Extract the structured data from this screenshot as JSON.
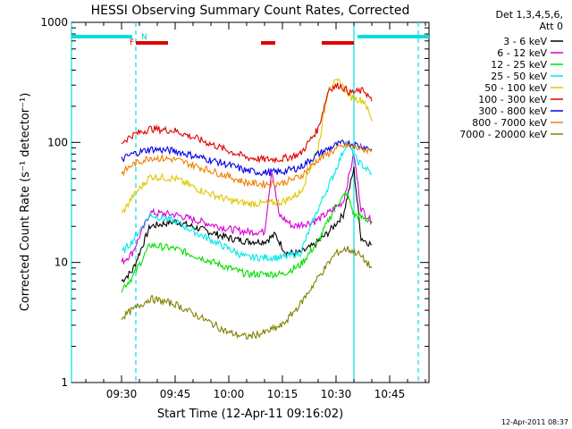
{
  "chart_data": {
    "type": "line",
    "title": "HESSI Observing Summary Count Rates, Corrected",
    "xlabel": "Start Time (12-Apr-11 09:16:02)",
    "ylabel": "Corrected Count Rate (s⁻¹ detector⁻¹)",
    "ylim": [
      1,
      1000
    ],
    "yscale": "log",
    "xlim_minutes": [
      "09:16",
      "10:56"
    ],
    "x_tick_labels": [
      "09:30",
      "09:45",
      "10:00",
      "10:15",
      "10:30",
      "10:45"
    ],
    "y_tick_labels": [
      "1",
      "10",
      "100",
      "1000"
    ],
    "legend_header": [
      "Det 1,3,4,5,6,",
      "Att 0"
    ],
    "legend_position": "right",
    "timestamp": "12-Apr-2011 08:37",
    "annotations": {
      "flag_F": "F",
      "flag_N": "N"
    },
    "series": [
      {
        "name": "3 - 6 keV",
        "color": "#000000",
        "points": [
          [
            "09:30",
            7
          ],
          [
            "09:33",
            8.5
          ],
          [
            "09:38",
            20
          ],
          [
            "09:45",
            22
          ],
          [
            "09:52",
            19
          ],
          [
            "10:00",
            16
          ],
          [
            "10:05",
            15
          ],
          [
            "10:10",
            15
          ],
          [
            "10:13",
            17
          ],
          [
            "10:16",
            12
          ],
          [
            "10:20",
            12
          ],
          [
            "10:24",
            14
          ],
          [
            "10:28",
            18
          ],
          [
            "10:32",
            25
          ],
          [
            "10:35",
            60
          ],
          [
            "10:37",
            16
          ],
          [
            "10:40",
            14
          ]
        ]
      },
      {
        "name": "6 - 12 keV",
        "color": "#d600d6",
        "points": [
          [
            "09:30",
            10
          ],
          [
            "09:33",
            12
          ],
          [
            "09:38",
            26
          ],
          [
            "09:45",
            25
          ],
          [
            "09:52",
            22
          ],
          [
            "10:00",
            19
          ],
          [
            "10:05",
            18
          ],
          [
            "10:10",
            18
          ],
          [
            "10:12",
            60
          ],
          [
            "10:14",
            25
          ],
          [
            "10:18",
            20
          ],
          [
            "10:24",
            22
          ],
          [
            "10:28",
            26
          ],
          [
            "10:32",
            32
          ],
          [
            "10:35",
            80
          ],
          [
            "10:37",
            28
          ],
          [
            "10:40",
            22
          ]
        ]
      },
      {
        "name": "12 - 25 keV",
        "color": "#00e000",
        "points": [
          [
            "09:30",
            6
          ],
          [
            "09:33",
            7.5
          ],
          [
            "09:38",
            14
          ],
          [
            "09:45",
            13
          ],
          [
            "09:52",
            11
          ],
          [
            "10:00",
            9
          ],
          [
            "10:05",
            8
          ],
          [
            "10:10",
            8
          ],
          [
            "10:15",
            8
          ],
          [
            "10:20",
            9.5
          ],
          [
            "10:25",
            15
          ],
          [
            "10:30",
            30
          ],
          [
            "10:33",
            38
          ],
          [
            "10:35",
            25
          ],
          [
            "10:40",
            22
          ]
        ]
      },
      {
        "name": "25 - 50 keV",
        "color": "#00e8e8",
        "points": [
          [
            "09:30",
            12
          ],
          [
            "09:33",
            15
          ],
          [
            "09:38",
            25
          ],
          [
            "09:45",
            22
          ],
          [
            "09:52",
            17
          ],
          [
            "10:00",
            13
          ],
          [
            "10:05",
            11
          ],
          [
            "10:10",
            11
          ],
          [
            "10:15",
            11
          ],
          [
            "10:20",
            12
          ],
          [
            "10:25",
            28
          ],
          [
            "10:30",
            60
          ],
          [
            "10:33",
            100
          ],
          [
            "10:36",
            70
          ],
          [
            "10:40",
            55
          ]
        ]
      },
      {
        "name": "50 - 100 keV",
        "color": "#e0c800",
        "points": [
          [
            "09:30",
            25
          ],
          [
            "09:33",
            35
          ],
          [
            "09:38",
            52
          ],
          [
            "09:45",
            50
          ],
          [
            "09:52",
            40
          ],
          [
            "10:00",
            33
          ],
          [
            "10:05",
            31
          ],
          [
            "10:10",
            31
          ],
          [
            "10:15",
            32
          ],
          [
            "10:20",
            38
          ],
          [
            "10:25",
            90
          ],
          [
            "10:28",
            300
          ],
          [
            "10:31",
            320
          ],
          [
            "10:34",
            240
          ],
          [
            "10:38",
            220
          ],
          [
            "10:40",
            150
          ]
        ]
      },
      {
        "name": "100 - 300 keV",
        "color": "#e00000",
        "points": [
          [
            "09:30",
            100
          ],
          [
            "09:33",
            115
          ],
          [
            "09:38",
            130
          ],
          [
            "09:45",
            125
          ],
          [
            "09:52",
            105
          ],
          [
            "10:00",
            85
          ],
          [
            "10:05",
            75
          ],
          [
            "10:10",
            72
          ],
          [
            "10:15",
            73
          ],
          [
            "10:20",
            80
          ],
          [
            "10:25",
            130
          ],
          [
            "10:28",
            280
          ],
          [
            "10:31",
            300
          ],
          [
            "10:34",
            260
          ],
          [
            "10:38",
            270
          ],
          [
            "10:40",
            220
          ]
        ]
      },
      {
        "name": "300 - 800 keV",
        "color": "#0000e8",
        "points": [
          [
            "09:30",
            72
          ],
          [
            "09:33",
            80
          ],
          [
            "09:38",
            88
          ],
          [
            "09:45",
            85
          ],
          [
            "09:52",
            75
          ],
          [
            "10:00",
            65
          ],
          [
            "10:05",
            58
          ],
          [
            "10:10",
            56
          ],
          [
            "10:15",
            57
          ],
          [
            "10:20",
            62
          ],
          [
            "10:25",
            80
          ],
          [
            "10:30",
            95
          ],
          [
            "10:33",
            100
          ],
          [
            "10:36",
            95
          ],
          [
            "10:40",
            88
          ]
        ]
      },
      {
        "name": "800 - 7000 keV",
        "color": "#f08000",
        "points": [
          [
            "09:30",
            55
          ],
          [
            "09:33",
            65
          ],
          [
            "09:38",
            75
          ],
          [
            "09:45",
            72
          ],
          [
            "09:52",
            62
          ],
          [
            "10:00",
            52
          ],
          [
            "10:05",
            46
          ],
          [
            "10:10",
            45
          ],
          [
            "10:15",
            46
          ],
          [
            "10:20",
            52
          ],
          [
            "10:25",
            72
          ],
          [
            "10:30",
            88
          ],
          [
            "10:33",
            95
          ],
          [
            "10:36",
            90
          ],
          [
            "10:40",
            85
          ]
        ]
      },
      {
        "name": "7000 - 20000 keV",
        "color": "#808000",
        "points": [
          [
            "09:30",
            3.5
          ],
          [
            "09:33",
            4
          ],
          [
            "09:38",
            5
          ],
          [
            "09:45",
            4.5
          ],
          [
            "09:52",
            3.5
          ],
          [
            "10:00",
            2.6
          ],
          [
            "10:05",
            2.4
          ],
          [
            "10:10",
            2.6
          ],
          [
            "10:15",
            3
          ],
          [
            "10:20",
            4.5
          ],
          [
            "10:25",
            7.5
          ],
          [
            "10:30",
            12
          ],
          [
            "10:33",
            13
          ],
          [
            "10:36",
            12
          ],
          [
            "10:40",
            9
          ]
        ]
      }
    ],
    "flag_bars": [
      {
        "name": "observing-bar-left",
        "color": "#00e0e0",
        "start": "09:16",
        "end": "09:33"
      },
      {
        "name": "observing-bar-right",
        "color": "#00e0e0",
        "start": "10:36",
        "end": "10:56"
      },
      {
        "name": "flare-flag-1",
        "color": "#e00000",
        "start": "09:34",
        "end": "09:43"
      },
      {
        "name": "flare-flag-2",
        "color": "#e00000",
        "start": "10:09",
        "end": "10:13"
      },
      {
        "name": "flare-flag-3",
        "color": "#e00000",
        "start": "10:26",
        "end": "10:35"
      }
    ],
    "vertical_markers": [
      {
        "name": "night-start-line",
        "time": "09:16",
        "style": "solid",
        "color": "#00e0e0"
      },
      {
        "name": "night-end-line",
        "time": "09:34",
        "style": "dashed",
        "color": "#00e0e0"
      },
      {
        "name": "saa-start-line",
        "time": "10:35",
        "style": "solid",
        "color": "#00e0e0"
      },
      {
        "name": "saa-end-line",
        "time": "10:53",
        "style": "dashed",
        "color": "#00e0e0"
      }
    ]
  }
}
